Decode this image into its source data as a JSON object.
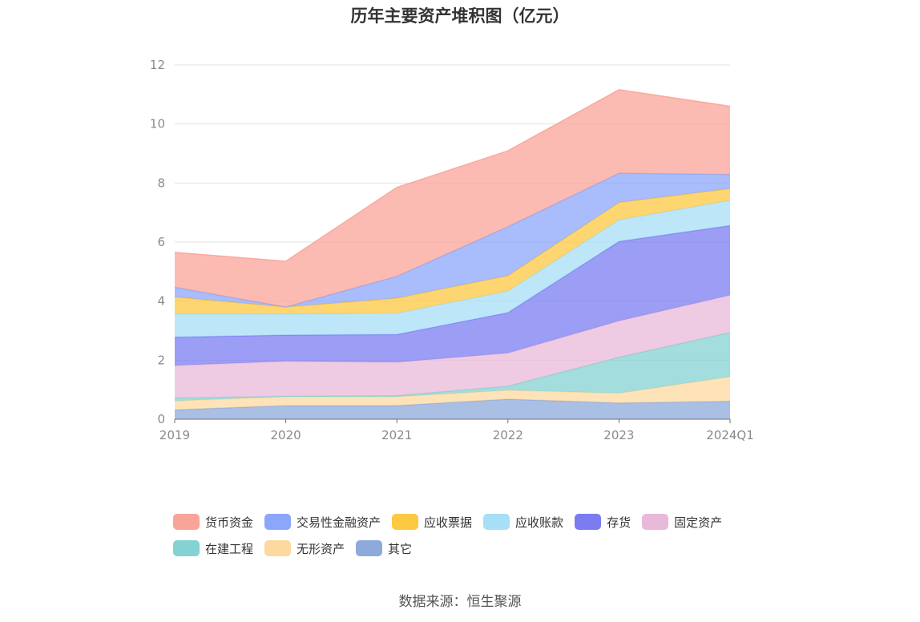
{
  "chart_data": {
    "type": "area",
    "title": "历年主要资产堆积图（亿元）",
    "categories": [
      "2019",
      "2020",
      "2021",
      "2022",
      "2023",
      "2024Q1"
    ],
    "ylim": [
      0,
      12
    ],
    "yticks": [
      0,
      2,
      4,
      6,
      8,
      10,
      12
    ],
    "grid": true,
    "legend_position": "bottom",
    "stacked": true,
    "series": [
      {
        "name": "其它",
        "color": "#8eaadb",
        "values": [
          0.32,
          0.46,
          0.46,
          0.68,
          0.55,
          0.61
        ]
      },
      {
        "name": "无形资产",
        "color": "#fdd9a0",
        "values": [
          0.3,
          0.3,
          0.3,
          0.3,
          0.33,
          0.83
        ]
      },
      {
        "name": "在建工程",
        "color": "#84d2d1",
        "values": [
          0.1,
          0.02,
          0.04,
          0.14,
          1.22,
          1.5
        ]
      },
      {
        "name": "固定资产",
        "color": "#e9b9da",
        "values": [
          1.1,
          1.18,
          1.13,
          1.12,
          1.23,
          1.26
        ]
      },
      {
        "name": "存货",
        "color": "#7b7cf0",
        "values": [
          0.96,
          0.89,
          0.94,
          1.37,
          2.69,
          2.36
        ]
      },
      {
        "name": "应收账款",
        "color": "#a7dff7",
        "values": [
          0.78,
          0.71,
          0.72,
          0.73,
          0.73,
          0.85
        ]
      },
      {
        "name": "应收票据",
        "color": "#fdc842",
        "values": [
          0.58,
          0.24,
          0.51,
          0.52,
          0.59,
          0.4
        ]
      },
      {
        "name": "交易性金融资产",
        "color": "#8ca6fb",
        "values": [
          0.33,
          0.0,
          0.74,
          1.66,
          0.99,
          0.48
        ]
      },
      {
        "name": "货币资金",
        "color": "#f9a499",
        "values": [
          1.18,
          1.55,
          3.01,
          2.57,
          2.83,
          2.31
        ]
      }
    ]
  },
  "legend": {
    "row1": [
      "货币资金",
      "交易性金融资产",
      "应收票据",
      "应收账款",
      "存货",
      "固定资产"
    ],
    "row2": [
      "在建工程",
      "无形资产",
      "其它"
    ]
  },
  "source": "数据来源：恒生聚源"
}
